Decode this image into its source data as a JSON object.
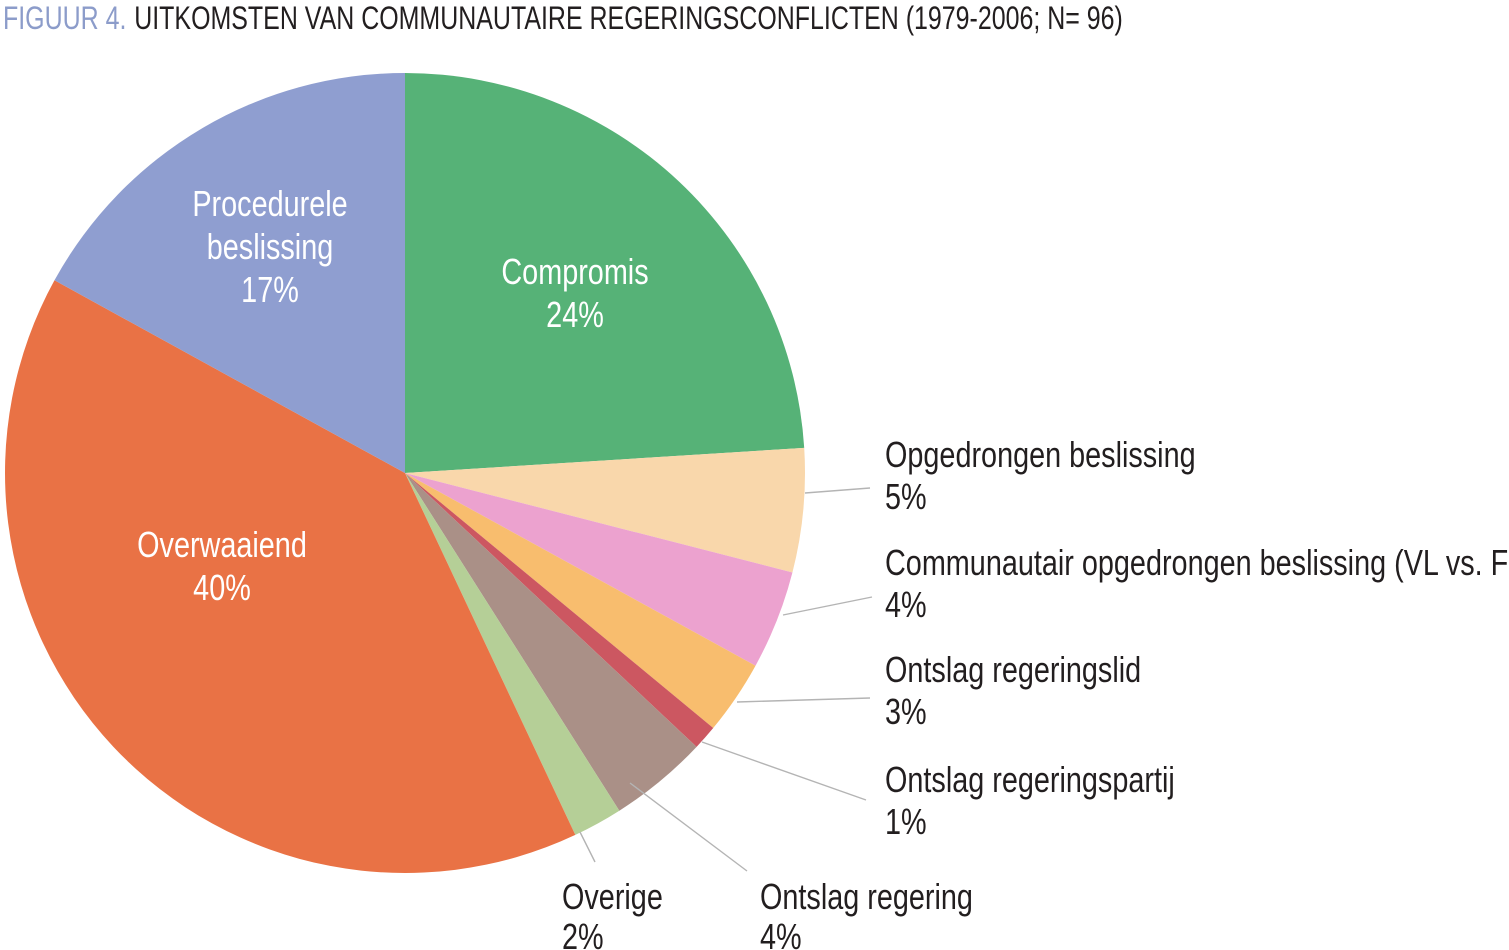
{
  "title": {
    "prefix": "FIGUUR 4.",
    "text": "UITKOMSTEN VAN COMMUNAUTAIRE REGERINGSCONFLICTEN (1979-2006; N= 96)"
  },
  "colors": {
    "background": "#ffffff",
    "title_prefix": "#8c9cca",
    "text": "#221e1f",
    "inside_label_text": "#ffffff",
    "leader_line": "#b4b4b4"
  },
  "chart_data": {
    "type": "pie",
    "title": "FIGUUR 4. UITKOMSTEN VAN COMMUNAUTAIRE REGERINGSCONFLICTEN (1979-2006; N= 96)",
    "n": 96,
    "start_angle_deg": 0,
    "direction": "clockwise",
    "legend_position": "none",
    "segments": [
      {
        "label": "Compromis",
        "value": 24,
        "pct_label": "24%",
        "color": "#56b277",
        "label_placement": "inside"
      },
      {
        "label": "Opgedrongen beslissing",
        "value": 5,
        "pct_label": "5%",
        "color": "#f9d7ab",
        "label_placement": "outside-right"
      },
      {
        "label": "Communautair opgedrongen beslissing (VL vs. FR)",
        "value": 4,
        "pct_label": "4%",
        "color": "#eca2cf",
        "label_placement": "outside-right"
      },
      {
        "label": "Ontslag regeringslid",
        "value": 3,
        "pct_label": "3%",
        "color": "#f8bd6e",
        "label_placement": "outside-right"
      },
      {
        "label": "Ontslag regeringspartij",
        "value": 1,
        "pct_label": "1%",
        "color": "#cc5761",
        "label_placement": "outside-right"
      },
      {
        "label": "Ontslag regering",
        "value": 4,
        "pct_label": "4%",
        "color": "#aa9087",
        "label_placement": "outside-bottom"
      },
      {
        "label": "Overige",
        "value": 2,
        "pct_label": "2%",
        "color": "#b5cf97",
        "label_placement": "outside-bottom"
      },
      {
        "label": "Overwaaiend",
        "value": 40,
        "pct_label": "40%",
        "color": "#e97245",
        "label_placement": "inside"
      },
      {
        "label": "Procedurele beslissing",
        "value": 17,
        "pct_label": "17%",
        "color": "#8f9ed0",
        "label_placement": "inside"
      }
    ]
  }
}
